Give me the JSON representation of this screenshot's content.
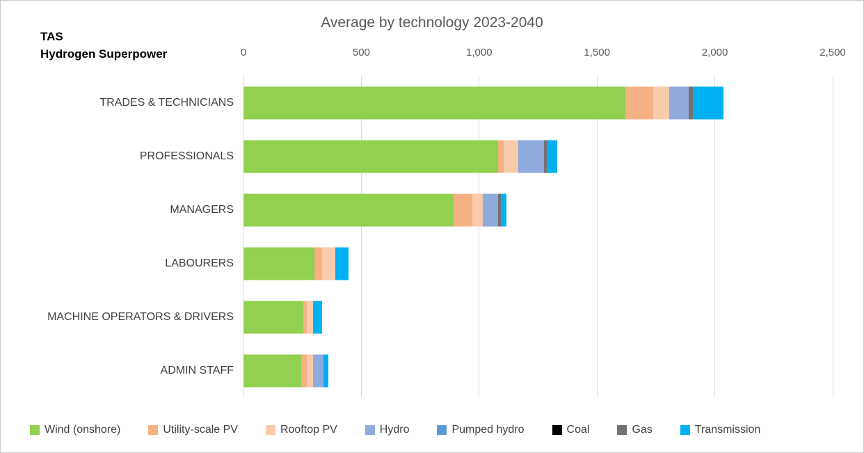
{
  "header": {
    "corner_line1": "TAS",
    "corner_line2": "Hydrogen Superpower"
  },
  "chart_data": {
    "type": "bar",
    "orientation": "horizontal",
    "stacked": true,
    "title": "Average by technology 2023-2040",
    "xlabel": "",
    "ylabel": "",
    "xlim": [
      0,
      2500
    ],
    "grid": "vertical",
    "legend_position": "bottom",
    "x_ticks": [
      {
        "label": "0",
        "value": 0
      },
      {
        "label": "500",
        "value": 500
      },
      {
        "label": "1,000",
        "value": 1000
      },
      {
        "label": "1,500",
        "value": 1500
      },
      {
        "label": "2,000",
        "value": 2000
      },
      {
        "label": "2,500",
        "value": 2500
      }
    ],
    "categories": [
      "TRADES & TECHNICIANS",
      "PROFESSIONALS",
      "MANAGERS",
      "LABOURERS",
      "MACHINE OPERATORS & DRIVERS",
      "ADMIN STAFF"
    ],
    "series": [
      {
        "name": "Wind (onshore)",
        "color": "#92d050",
        "values": [
          1620,
          1080,
          890,
          300,
          255,
          245
        ]
      },
      {
        "name": "Utility-scale PV",
        "color": "#f4b183",
        "values": [
          120,
          25,
          80,
          35,
          15,
          25
        ]
      },
      {
        "name": "Rooftop PV",
        "color": "#f8cbad",
        "values": [
          65,
          60,
          45,
          55,
          25,
          25
        ]
      },
      {
        "name": "Hydro",
        "color": "#8faadc",
        "values": [
          85,
          110,
          65,
          0,
          0,
          45
        ]
      },
      {
        "name": "Pumped hydro",
        "color": "#5b9bd5",
        "values": [
          0,
          0,
          0,
          0,
          0,
          0
        ]
      },
      {
        "name": "Coal",
        "color": "#000000",
        "values": [
          0,
          0,
          0,
          0,
          0,
          0
        ]
      },
      {
        "name": "Gas",
        "color": "#767171",
        "values": [
          18,
          12,
          12,
          0,
          0,
          0
        ]
      },
      {
        "name": "Transmission",
        "color": "#00b0f0",
        "values": [
          130,
          45,
          25,
          55,
          40,
          20
        ]
      }
    ]
  }
}
